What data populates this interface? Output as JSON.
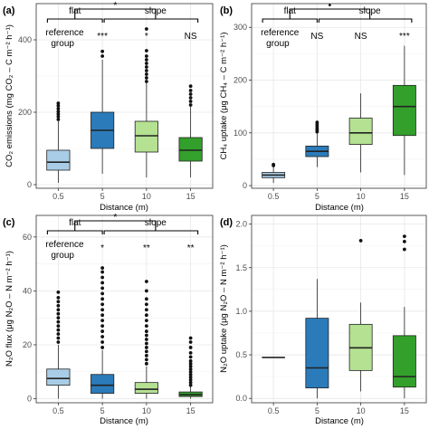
{
  "chart_data": [
    {
      "panel": "(a)",
      "type": "box",
      "xlabel": "Distance (m)",
      "ylabel": "CO₂ emissions (mg CO₂ – C m⁻² h⁻¹)",
      "categories": [
        "0.5",
        "5",
        "10",
        "15"
      ],
      "yticks": [
        "0",
        "200",
        "400"
      ],
      "ylim": [
        -10,
        500
      ],
      "colors": [
        "#a9cde7",
        "#2b7bba",
        "#b4e192",
        "#33a02c"
      ],
      "boxes": [
        {
          "q1": 40,
          "median": 62,
          "q3": 95,
          "whislo": 5,
          "whishi": 175,
          "outliers": [
            180,
            188,
            195,
            202,
            210,
            218,
            225
          ]
        },
        {
          "q1": 100,
          "median": 150,
          "q3": 200,
          "whislo": 30,
          "whishi": 345,
          "outliers": [
            355,
            368
          ]
        },
        {
          "q1": 90,
          "median": 135,
          "q3": 175,
          "whislo": 20,
          "whishi": 280,
          "outliers": [
            285,
            295,
            305,
            315,
            325,
            335,
            345,
            355,
            370,
            430
          ]
        },
        {
          "q1": 65,
          "median": 95,
          "q3": 130,
          "whislo": 20,
          "whishi": 215,
          "outliers": [
            220,
            230,
            240,
            250,
            260,
            272
          ]
        }
      ],
      "annotations": {
        "flat": "flat",
        "slope": "slope",
        "between": "*",
        "reference": [
          "reference",
          "group"
        ],
        "sig": [
          "",
          "***",
          "*",
          "NS"
        ]
      }
    },
    {
      "panel": "(b)",
      "type": "box",
      "xlabel": "Distance (m)",
      "ylabel": "CH₄ uptake (μg CH₄ – C m⁻² h⁻¹)",
      "categories": [
        "0.5",
        "5",
        "10",
        "15"
      ],
      "yticks": [
        "0",
        "100",
        "200",
        "300"
      ],
      "ylim": [
        -5,
        345
      ],
      "colors": [
        "#a9cde7",
        "#2b7bba",
        "#b4e192",
        "#33a02c"
      ],
      "boxes": [
        {
          "q1": 15,
          "median": 20,
          "q3": 25,
          "whislo": 5,
          "whishi": 35,
          "outliers": [
            38,
            40
          ]
        },
        {
          "q1": 55,
          "median": 65,
          "q3": 75,
          "whislo": 35,
          "whishi": 100,
          "outliers": [
            102,
            105,
            108,
            112,
            116,
            120
          ]
        },
        {
          "q1": 78,
          "median": 100,
          "q3": 128,
          "whislo": 25,
          "whishi": 175,
          "outliers": []
        },
        {
          "q1": 95,
          "median": 150,
          "q3": 190,
          "whislo": 20,
          "whishi": 265,
          "outliers": []
        }
      ],
      "annotations": {
        "flat": "flat",
        "slope": "slope",
        "between": "•",
        "reference": [
          "reference",
          "group"
        ],
        "sig": [
          "",
          "NS",
          "NS",
          "***"
        ]
      }
    },
    {
      "panel": "(c)",
      "type": "box",
      "xlabel": "Distance (m)",
      "ylabel": "N₂O flux (μg N₂O – N m⁻² h⁻¹)",
      "categories": [
        "0.5",
        "5",
        "10",
        "15"
      ],
      "yticks": [
        "0",
        "20",
        "40",
        "60"
      ],
      "ylim": [
        -1.5,
        68
      ],
      "colors": [
        "#a9cde7",
        "#2b7bba",
        "#b4e192",
        "#33a02c"
      ],
      "boxes": [
        {
          "q1": 5,
          "median": 7.5,
          "q3": 11,
          "whislo": 0,
          "whishi": 20,
          "outliers": [
            21,
            22.5,
            24,
            25.5,
            27,
            28.5,
            30,
            31.5,
            33,
            34.5,
            36,
            37.5,
            39.5
          ]
        },
        {
          "q1": 2,
          "median": 5,
          "q3": 9,
          "whislo": 0,
          "whishi": 18,
          "outliers": [
            19,
            21,
            23,
            25,
            27,
            29,
            31,
            33,
            35,
            37,
            39,
            41,
            43,
            45,
            47,
            48.5
          ]
        },
        {
          "q1": 2,
          "median": 3.5,
          "q3": 6,
          "whislo": 0,
          "whishi": 12,
          "outliers": [
            13,
            14.5,
            16,
            17.5,
            19,
            20.5,
            22,
            23.5,
            25,
            27,
            29,
            31,
            33,
            35,
            37,
            40,
            43.5
          ]
        },
        {
          "q1": 0.8,
          "median": 1.5,
          "q3": 2.5,
          "whislo": 0,
          "whishi": 4.5,
          "outliers": [
            5,
            6,
            7,
            8,
            9,
            10,
            11,
            12,
            13,
            14,
            15.5,
            17,
            19,
            21,
            22.5
          ]
        }
      ],
      "annotations": {
        "flat": "flat",
        "slope": "slope",
        "between": "*",
        "reference": [
          "reference",
          "group"
        ],
        "sig": [
          "",
          "*",
          "**",
          "**"
        ]
      }
    },
    {
      "panel": "(d)",
      "type": "box",
      "xlabel": "Distance (m)",
      "ylabel": "N₂O uptake (μg N₂O – N m⁻² h⁻¹)",
      "categories": [
        "0.5",
        "5",
        "10",
        "15"
      ],
      "yticks": [
        "0.0",
        "0.5",
        "1.0",
        "1.5",
        "2.0"
      ],
      "ylim": [
        -0.05,
        2.1
      ],
      "colors": [
        "#a9cde7",
        "#2b7bba",
        "#b4e192",
        "#33a02c"
      ],
      "boxes": [
        {
          "q1": 0.47,
          "median": 0.47,
          "q3": 0.47,
          "whislo": 0.47,
          "whishi": 0.47,
          "outliers": []
        },
        {
          "q1": 0.12,
          "median": 0.35,
          "q3": 0.92,
          "whislo": 0.0,
          "whishi": 1.37,
          "outliers": []
        },
        {
          "q1": 0.32,
          "median": 0.58,
          "q3": 0.85,
          "whislo": 0.08,
          "whishi": 1.1,
          "outliers": [
            1.81
          ]
        },
        {
          "q1": 0.13,
          "median": 0.25,
          "q3": 0.72,
          "whislo": 0.0,
          "whishi": 1.05,
          "outliers": [
            1.71,
            1.8,
            1.86
          ]
        }
      ],
      "annotations": null
    }
  ]
}
